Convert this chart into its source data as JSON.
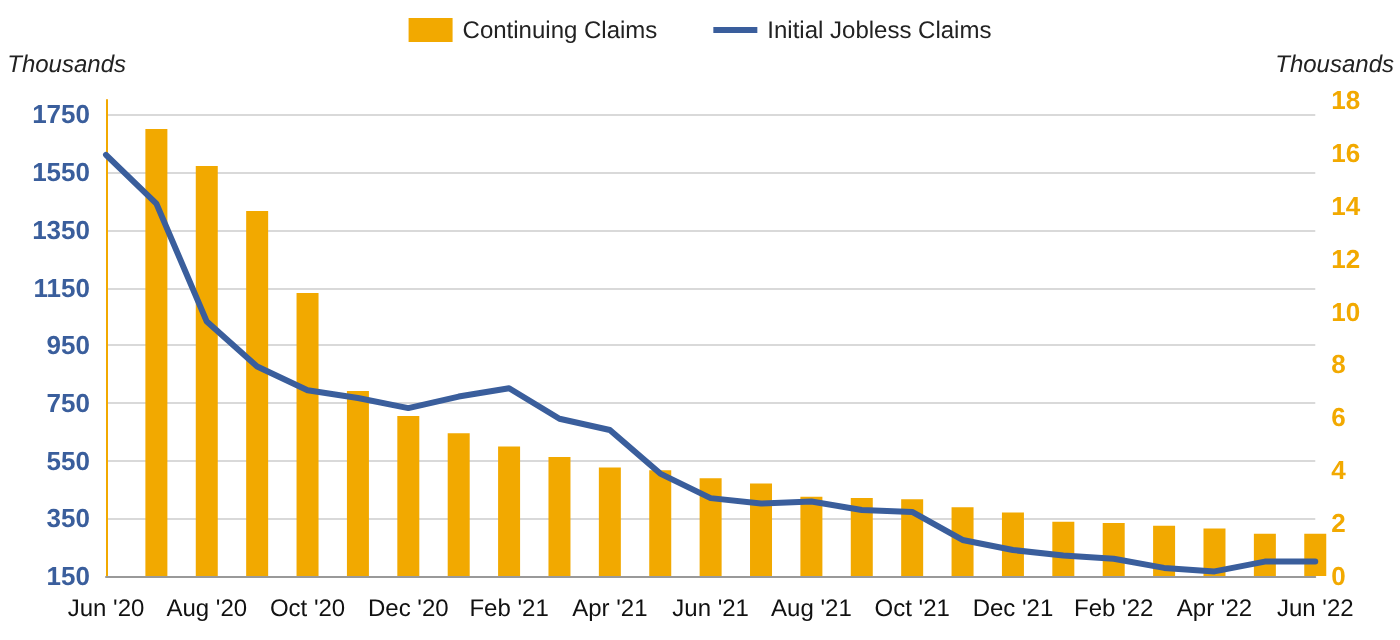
{
  "chart_data": {
    "type": "bar",
    "ylabel": "Thousands",
    "y2label": "Thousands",
    "categories": [
      "Jun '20",
      null,
      "Aug '20",
      null,
      "Oct '20",
      null,
      "Dec '20",
      null,
      "Feb '21",
      null,
      "Apr '21",
      null,
      "Jun '21",
      null,
      "Aug '21",
      null,
      "Oct '21",
      null,
      "Dec '21",
      null,
      "Feb '22",
      null,
      "Apr '22",
      null,
      "Jun '22"
    ],
    "series": [
      {
        "name": "Continuing Claims",
        "axis": "y2",
        "color": "#f2a900",
        "values": [
          null,
          16.9,
          15.5,
          13.8,
          10.7,
          7.0,
          6.05,
          5.4,
          4.9,
          4.5,
          4.1,
          4.0,
          3.7,
          3.5,
          3.0,
          2.95,
          2.9,
          2.6,
          2.4,
          2.05,
          2.0,
          1.9,
          1.8,
          1.6,
          1.6
        ]
      },
      {
        "name": "Initial Jobless Claims",
        "type": "line",
        "color": "#3a5e9c",
        "values": [
          1610,
          1441,
          1032,
          876,
          794,
          767,
          732,
          772,
          801,
          695,
          656,
          505,
          420,
          401,
          408,
          379,
          372,
          275,
          240,
          221,
          210,
          178,
          166,
          200,
          200
        ]
      }
    ],
    "ylim": [
      150,
      1800
    ],
    "yticks": [
      150,
      350,
      550,
      750,
      950,
      1150,
      1350,
      1550,
      1750
    ],
    "y2lim": [
      0,
      18
    ],
    "y2ticks": [
      0,
      2,
      4,
      6,
      8,
      10,
      12,
      14,
      16,
      18
    ],
    "grid": "y",
    "legend": "top",
    "marker": "none",
    "line_style": "solid"
  }
}
